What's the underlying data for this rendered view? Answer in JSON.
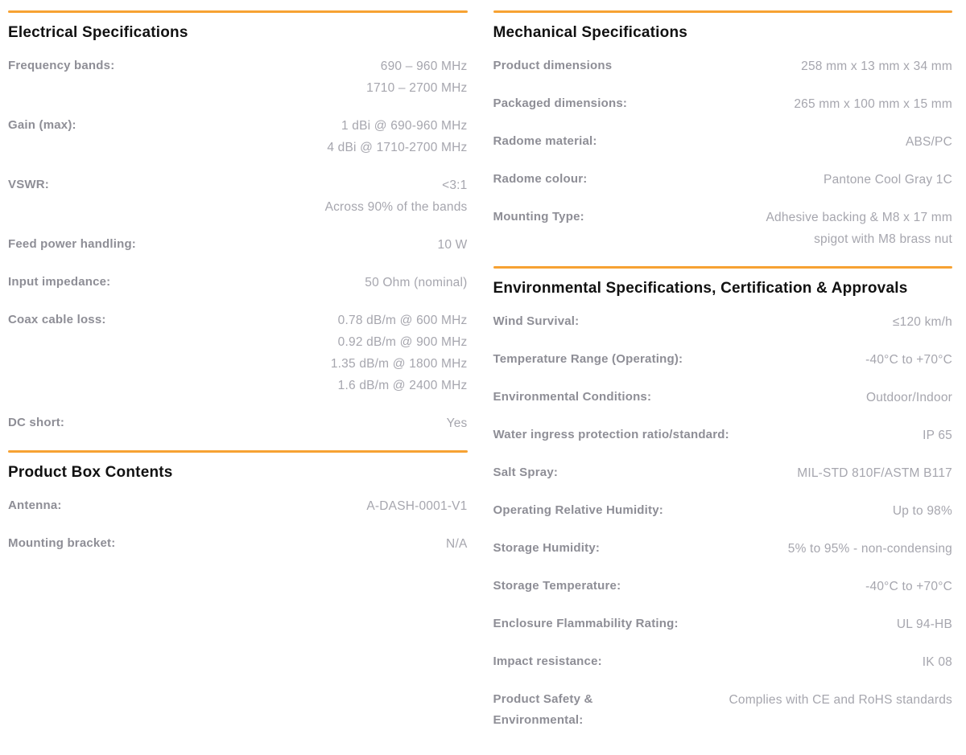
{
  "colors": {
    "accent": "#F7A233",
    "heading": "#111111",
    "label": "#8E8E96",
    "value": "#A6A6AE"
  },
  "columns": [
    {
      "name": "left",
      "sections": [
        {
          "title": "Electrical Specifications",
          "rows": [
            {
              "label": "Frequency bands:",
              "value": "690 – 960 MHz\n1710 – 2700 MHz"
            },
            {
              "label": "Gain (max):",
              "value": "1 dBi @ 690-960 MHz\n4 dBi @ 1710-2700 MHz"
            },
            {
              "label": "VSWR:",
              "value": "<3:1\nAcross 90% of the bands"
            },
            {
              "label": "Feed power handling:",
              "value": "10 W"
            },
            {
              "label": "Input impedance:",
              "value": "50 Ohm (nominal)"
            },
            {
              "label": "Coax cable loss:",
              "value": "0.78 dB/m @ 600 MHz\n0.92 dB/m @ 900 MHz\n1.35 dB/m @ 1800 MHz\n1.6 dB/m @ 2400 MHz"
            },
            {
              "label": "DC short:",
              "value": "Yes"
            }
          ]
        },
        {
          "title": "Product Box Contents",
          "rows": [
            {
              "label": "Antenna:",
              "value": "A-DASH-0001-V1"
            },
            {
              "label": "Mounting bracket:",
              "value": "N/A"
            }
          ]
        }
      ]
    },
    {
      "name": "right",
      "sections": [
        {
          "title": "Mechanical Specifications",
          "rows": [
            {
              "label": "Product dimensions",
              "value": "258 mm x 13 mm x 34 mm"
            },
            {
              "label": "Packaged dimensions:",
              "value": "265 mm x 100 mm x 15 mm"
            },
            {
              "label": "Radome material:",
              "value": "ABS/PC"
            },
            {
              "label": "Radome colour:",
              "value": "Pantone Cool Gray 1C"
            },
            {
              "label": "Mounting Type:",
              "value": "Adhesive backing & M8 x 17 mm\nspigot with M8 brass nut"
            }
          ]
        },
        {
          "title": "Environmental Specifications, Certification & Approvals",
          "rows": [
            {
              "label": "Wind Survival:",
              "value": "≤120 km/h"
            },
            {
              "label": "Temperature Range (Operating):",
              "value": "-40°C to +70°C"
            },
            {
              "label": "Environmental Conditions:",
              "value": "Outdoor/Indoor"
            },
            {
              "label": "Water ingress protection ratio/standard:",
              "value": "IP 65"
            },
            {
              "label": "Salt Spray:",
              "value": "MIL-STD 810F/ASTM B117"
            },
            {
              "label": "Operating Relative Humidity:",
              "value": "Up to 98%"
            },
            {
              "label": "Storage Humidity:",
              "value": "5% to 95% - non-condensing"
            },
            {
              "label": "Storage Temperature:",
              "value": "-40°C to +70°C"
            },
            {
              "label": "Enclosure Flammability Rating:",
              "value": "UL 94-HB"
            },
            {
              "label": "Impact resistance:",
              "value": "IK 08"
            },
            {
              "label": "Product Safety &\nEnvironmental:",
              "value": "Complies with CE and RoHS standards"
            }
          ]
        }
      ]
    }
  ]
}
